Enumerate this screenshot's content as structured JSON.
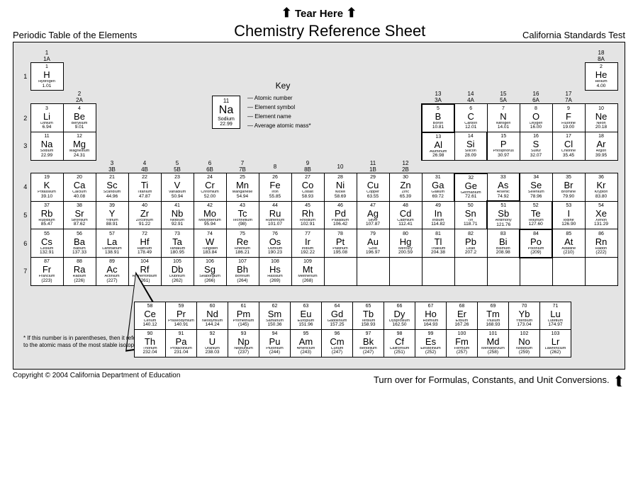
{
  "tear_text": "Tear Here",
  "header_left": "Periodic Table of the Elements",
  "header_center": "Chemistry Reference Sheet",
  "header_right": "California Standards Test",
  "key": {
    "title": "Key",
    "num": "11",
    "sym": "Na",
    "name": "Sodium",
    "mass": "22.99",
    "labels": [
      "Atomic number",
      "Element symbol",
      "Element name",
      "Average atomic mass*"
    ]
  },
  "note_text": "If this number is in parentheses, then it refers to the atomic mass of the most stable isotope.",
  "footer_left": "Copyright © 2004 California Department of Education",
  "footer_right": "Turn over for Formulas, Constants, and Unit Conversions.",
  "groups_top": [
    "1",
    "2",
    "",
    "",
    "",
    "",
    "",
    "",
    "",
    "",
    "",
    "",
    "13",
    "14",
    "15",
    "16",
    "17",
    "18"
  ],
  "groups_bottom": [
    "1A",
    "2A",
    "3B",
    "4B",
    "5B",
    "6B",
    "7B",
    "",
    "8B",
    "",
    "1B",
    "2B",
    "3A",
    "4A",
    "5A",
    "6A",
    "7A",
    "8A"
  ],
  "group_num_row": [
    "",
    "",
    "3",
    "4",
    "5",
    "6",
    "7",
    "8",
    "9",
    "10",
    "11",
    "12",
    "",
    "",
    "",
    "",
    "",
    ""
  ],
  "periods": [
    "1",
    "2",
    "3",
    "4",
    "5",
    "6",
    "7"
  ],
  "elements": {
    "1-1": {
      "n": "1",
      "s": "H",
      "nm": "Hydrogen",
      "m": "1.01"
    },
    "1-18": {
      "n": "2",
      "s": "He",
      "nm": "Helium",
      "m": "4.00"
    },
    "2-1": {
      "n": "3",
      "s": "Li",
      "nm": "Lithium",
      "m": "6.94"
    },
    "2-2": {
      "n": "4",
      "s": "Be",
      "nm": "Beryllium",
      "m": "9.01"
    },
    "2-13": {
      "n": "5",
      "s": "B",
      "nm": "Boron",
      "m": "10.81"
    },
    "2-14": {
      "n": "6",
      "s": "C",
      "nm": "Carbon",
      "m": "12.01"
    },
    "2-15": {
      "n": "7",
      "s": "N",
      "nm": "Nitrogen",
      "m": "14.01"
    },
    "2-16": {
      "n": "8",
      "s": "O",
      "nm": "Oxygen",
      "m": "16.00"
    },
    "2-17": {
      "n": "9",
      "s": "F",
      "nm": "Fluorine",
      "m": "19.00"
    },
    "2-18": {
      "n": "10",
      "s": "Ne",
      "nm": "Neon",
      "m": "20.18"
    },
    "3-1": {
      "n": "11",
      "s": "Na",
      "nm": "Sodium",
      "m": "22.99"
    },
    "3-2": {
      "n": "12",
      "s": "Mg",
      "nm": "Magnesium",
      "m": "24.31"
    },
    "3-13": {
      "n": "13",
      "s": "Al",
      "nm": "Aluminum",
      "m": "26.98"
    },
    "3-14": {
      "n": "14",
      "s": "Si",
      "nm": "Silicon",
      "m": "28.09"
    },
    "3-15": {
      "n": "15",
      "s": "P",
      "nm": "Phosphorus",
      "m": "30.97"
    },
    "3-16": {
      "n": "16",
      "s": "S",
      "nm": "Sulfur",
      "m": "32.07"
    },
    "3-17": {
      "n": "17",
      "s": "Cl",
      "nm": "Chlorine",
      "m": "35.45"
    },
    "3-18": {
      "n": "18",
      "s": "Ar",
      "nm": "Argon",
      "m": "39.95"
    },
    "4-1": {
      "n": "19",
      "s": "K",
      "nm": "Potassium",
      "m": "39.10"
    },
    "4-2": {
      "n": "20",
      "s": "Ca",
      "nm": "Calcium",
      "m": "40.08"
    },
    "4-3": {
      "n": "21",
      "s": "Sc",
      "nm": "Scandium",
      "m": "44.96"
    },
    "4-4": {
      "n": "22",
      "s": "Ti",
      "nm": "Titanium",
      "m": "47.87"
    },
    "4-5": {
      "n": "23",
      "s": "V",
      "nm": "Vanadium",
      "m": "50.94"
    },
    "4-6": {
      "n": "24",
      "s": "Cr",
      "nm": "Chromium",
      "m": "52.00"
    },
    "4-7": {
      "n": "25",
      "s": "Mn",
      "nm": "Manganese",
      "m": "54.94"
    },
    "4-8": {
      "n": "26",
      "s": "Fe",
      "nm": "Iron",
      "m": "55.85"
    },
    "4-9": {
      "n": "27",
      "s": "Co",
      "nm": "Cobalt",
      "m": "58.93"
    },
    "4-10": {
      "n": "28",
      "s": "Ni",
      "nm": "Nickel",
      "m": "58.69"
    },
    "4-11": {
      "n": "29",
      "s": "Cu",
      "nm": "Copper",
      "m": "63.55"
    },
    "4-12": {
      "n": "30",
      "s": "Zn",
      "nm": "Zinc",
      "m": "65.39"
    },
    "4-13": {
      "n": "31",
      "s": "Ga",
      "nm": "Gallium",
      "m": "69.72"
    },
    "4-14": {
      "n": "32",
      "s": "Ge",
      "nm": "Germanium",
      "m": "72.61"
    },
    "4-15": {
      "n": "33",
      "s": "As",
      "nm": "Arsenic",
      "m": "74.92"
    },
    "4-16": {
      "n": "34",
      "s": "Se",
      "nm": "Selenium",
      "m": "78.96"
    },
    "4-17": {
      "n": "35",
      "s": "Br",
      "nm": "Bromine",
      "m": "79.90"
    },
    "4-18": {
      "n": "36",
      "s": "Kr",
      "nm": "Krypton",
      "m": "83.80"
    },
    "5-1": {
      "n": "37",
      "s": "Rb",
      "nm": "Rubidium",
      "m": "85.47"
    },
    "5-2": {
      "n": "38",
      "s": "Sr",
      "nm": "Strontium",
      "m": "87.62"
    },
    "5-3": {
      "n": "39",
      "s": "Y",
      "nm": "Yttrium",
      "m": "88.91"
    },
    "5-4": {
      "n": "40",
      "s": "Zr",
      "nm": "Zirconium",
      "m": "91.22"
    },
    "5-5": {
      "n": "41",
      "s": "Nb",
      "nm": "Niobium",
      "m": "92.91"
    },
    "5-6": {
      "n": "42",
      "s": "Mo",
      "nm": "Molybdenum",
      "m": "95.94"
    },
    "5-7": {
      "n": "43",
      "s": "Tc",
      "nm": "Technetium",
      "m": "(98)"
    },
    "5-8": {
      "n": "44",
      "s": "Ru",
      "nm": "Ruthenium",
      "m": "101.07"
    },
    "5-9": {
      "n": "45",
      "s": "Rh",
      "nm": "Rhodium",
      "m": "102.91"
    },
    "5-10": {
      "n": "46",
      "s": "Pd",
      "nm": "Palladium",
      "m": "106.42"
    },
    "5-11": {
      "n": "47",
      "s": "Ag",
      "nm": "Silver",
      "m": "107.87"
    },
    "5-12": {
      "n": "48",
      "s": "Cd",
      "nm": "Cadmium",
      "m": "112.41"
    },
    "5-13": {
      "n": "49",
      "s": "In",
      "nm": "Indium",
      "m": "114.82"
    },
    "5-14": {
      "n": "50",
      "s": "Sn",
      "nm": "Tin",
      "m": "118.71"
    },
    "5-15": {
      "n": "51",
      "s": "Sb",
      "nm": "Antimony",
      "m": "121.76"
    },
    "5-16": {
      "n": "52",
      "s": "Te",
      "nm": "Tellurium",
      "m": "127.60"
    },
    "5-17": {
      "n": "53",
      "s": "I",
      "nm": "Iodine",
      "m": "126.90"
    },
    "5-18": {
      "n": "54",
      "s": "Xe",
      "nm": "Xenon",
      "m": "131.29"
    },
    "6-1": {
      "n": "55",
      "s": "Cs",
      "nm": "Cesium",
      "m": "132.91"
    },
    "6-2": {
      "n": "56",
      "s": "Ba",
      "nm": "Barium",
      "m": "137.33"
    },
    "6-3": {
      "n": "57",
      "s": "La",
      "nm": "Lanthanum",
      "m": "138.91"
    },
    "6-4": {
      "n": "72",
      "s": "Hf",
      "nm": "Hafnium",
      "m": "178.49"
    },
    "6-5": {
      "n": "73",
      "s": "Ta",
      "nm": "Tantalum",
      "m": "180.95"
    },
    "6-6": {
      "n": "74",
      "s": "W",
      "nm": "Tungsten",
      "m": "183.84"
    },
    "6-7": {
      "n": "75",
      "s": "Re",
      "nm": "Rhenium",
      "m": "186.21"
    },
    "6-8": {
      "n": "76",
      "s": "Os",
      "nm": "Osmium",
      "m": "190.23"
    },
    "6-9": {
      "n": "77",
      "s": "Ir",
      "nm": "Iridium",
      "m": "192.22"
    },
    "6-10": {
      "n": "78",
      "s": "Pt",
      "nm": "Platinum",
      "m": "195.08"
    },
    "6-11": {
      "n": "79",
      "s": "Au",
      "nm": "Gold",
      "m": "196.97"
    },
    "6-12": {
      "n": "80",
      "s": "Hg",
      "nm": "Mercury",
      "m": "200.59"
    },
    "6-13": {
      "n": "81",
      "s": "Tl",
      "nm": "Thallium",
      "m": "204.38"
    },
    "6-14": {
      "n": "82",
      "s": "Pb",
      "nm": "Lead",
      "m": "207.2"
    },
    "6-15": {
      "n": "83",
      "s": "Bi",
      "nm": "Bismuth",
      "m": "208.98"
    },
    "6-16": {
      "n": "84",
      "s": "Po",
      "nm": "Polonium",
      "m": "(209)"
    },
    "6-17": {
      "n": "85",
      "s": "At",
      "nm": "Astatine",
      "m": "(210)"
    },
    "6-18": {
      "n": "86",
      "s": "Rn",
      "nm": "Radon",
      "m": "(222)"
    },
    "7-1": {
      "n": "87",
      "s": "Fr",
      "nm": "Francium",
      "m": "(223)"
    },
    "7-2": {
      "n": "88",
      "s": "Ra",
      "nm": "Radium",
      "m": "(226)"
    },
    "7-3": {
      "n": "89",
      "s": "Ac",
      "nm": "Actinium",
      "m": "(227)"
    },
    "7-4": {
      "n": "104",
      "s": "Rf",
      "nm": "Rutherfordium",
      "m": "(261)"
    },
    "7-5": {
      "n": "105",
      "s": "Db",
      "nm": "Dubnium",
      "m": "(262)"
    },
    "7-6": {
      "n": "106",
      "s": "Sg",
      "nm": "Seaborgium",
      "m": "(266)"
    },
    "7-7": {
      "n": "107",
      "s": "Bh",
      "nm": "Bohrium",
      "m": "(264)"
    },
    "7-8": {
      "n": "108",
      "s": "Hs",
      "nm": "Hassium",
      "m": "(269)"
    },
    "7-9": {
      "n": "109",
      "s": "Mt",
      "nm": "Meitnerium",
      "m": "(268)"
    }
  },
  "lanthanides": [
    {
      "n": "58",
      "s": "Ce",
      "nm": "Cerium",
      "m": "140.12"
    },
    {
      "n": "59",
      "s": "Pr",
      "nm": "Praseodymium",
      "m": "140.91"
    },
    {
      "n": "60",
      "s": "Nd",
      "nm": "Neodymium",
      "m": "144.24"
    },
    {
      "n": "61",
      "s": "Pm",
      "nm": "Promethium",
      "m": "(145)"
    },
    {
      "n": "62",
      "s": "Sm",
      "nm": "Samarium",
      "m": "150.36"
    },
    {
      "n": "63",
      "s": "Eu",
      "nm": "Europium",
      "m": "151.96"
    },
    {
      "n": "64",
      "s": "Gd",
      "nm": "Gadolinium",
      "m": "157.25"
    },
    {
      "n": "65",
      "s": "Tb",
      "nm": "Terbium",
      "m": "158.93"
    },
    {
      "n": "66",
      "s": "Dy",
      "nm": "Dysprosium",
      "m": "162.50"
    },
    {
      "n": "67",
      "s": "Ho",
      "nm": "Holmium",
      "m": "164.93"
    },
    {
      "n": "68",
      "s": "Er",
      "nm": "Erbium",
      "m": "167.26"
    },
    {
      "n": "69",
      "s": "Tm",
      "nm": "Thulium",
      "m": "168.93"
    },
    {
      "n": "70",
      "s": "Yb",
      "nm": "Ytterbium",
      "m": "173.04"
    },
    {
      "n": "71",
      "s": "Lu",
      "nm": "Lutetium",
      "m": "174.97"
    }
  ],
  "actinides": [
    {
      "n": "90",
      "s": "Th",
      "nm": "Thorium",
      "m": "232.04"
    },
    {
      "n": "91",
      "s": "Pa",
      "nm": "Protactinium",
      "m": "231.04"
    },
    {
      "n": "92",
      "s": "U",
      "nm": "Uranium",
      "m": "238.03"
    },
    {
      "n": "93",
      "s": "Np",
      "nm": "Neptunium",
      "m": "(237)"
    },
    {
      "n": "94",
      "s": "Pu",
      "nm": "Plutonium",
      "m": "(244)"
    },
    {
      "n": "95",
      "s": "Am",
      "nm": "Americium",
      "m": "(243)"
    },
    {
      "n": "96",
      "s": "Cm",
      "nm": "Curium",
      "m": "(247)"
    },
    {
      "n": "97",
      "s": "Bk",
      "nm": "Berkelium",
      "m": "(247)"
    },
    {
      "n": "98",
      "s": "Cf",
      "nm": "Californium",
      "m": "(251)"
    },
    {
      "n": "99",
      "s": "Es",
      "nm": "Einsteinium",
      "m": "(252)"
    },
    {
      "n": "100",
      "s": "Fm",
      "nm": "Fermium",
      "m": "(257)"
    },
    {
      "n": "101",
      "s": "Md",
      "nm": "Mendelevium",
      "m": "(258)"
    },
    {
      "n": "102",
      "s": "No",
      "nm": "Nobelium",
      "m": "(259)"
    },
    {
      "n": "103",
      "s": "Lr",
      "nm": "Lawrencium",
      "m": "(262)"
    }
  ],
  "metalloid_border": {
    "2": {
      "l": 13,
      "r": 13
    },
    "3": {
      "l": 13,
      "r": 14
    },
    "4": {
      "l": 14,
      "r": 15
    },
    "5": {
      "l": 15,
      "r": 16
    },
    "6": {
      "l": 16,
      "r": 16
    }
  }
}
